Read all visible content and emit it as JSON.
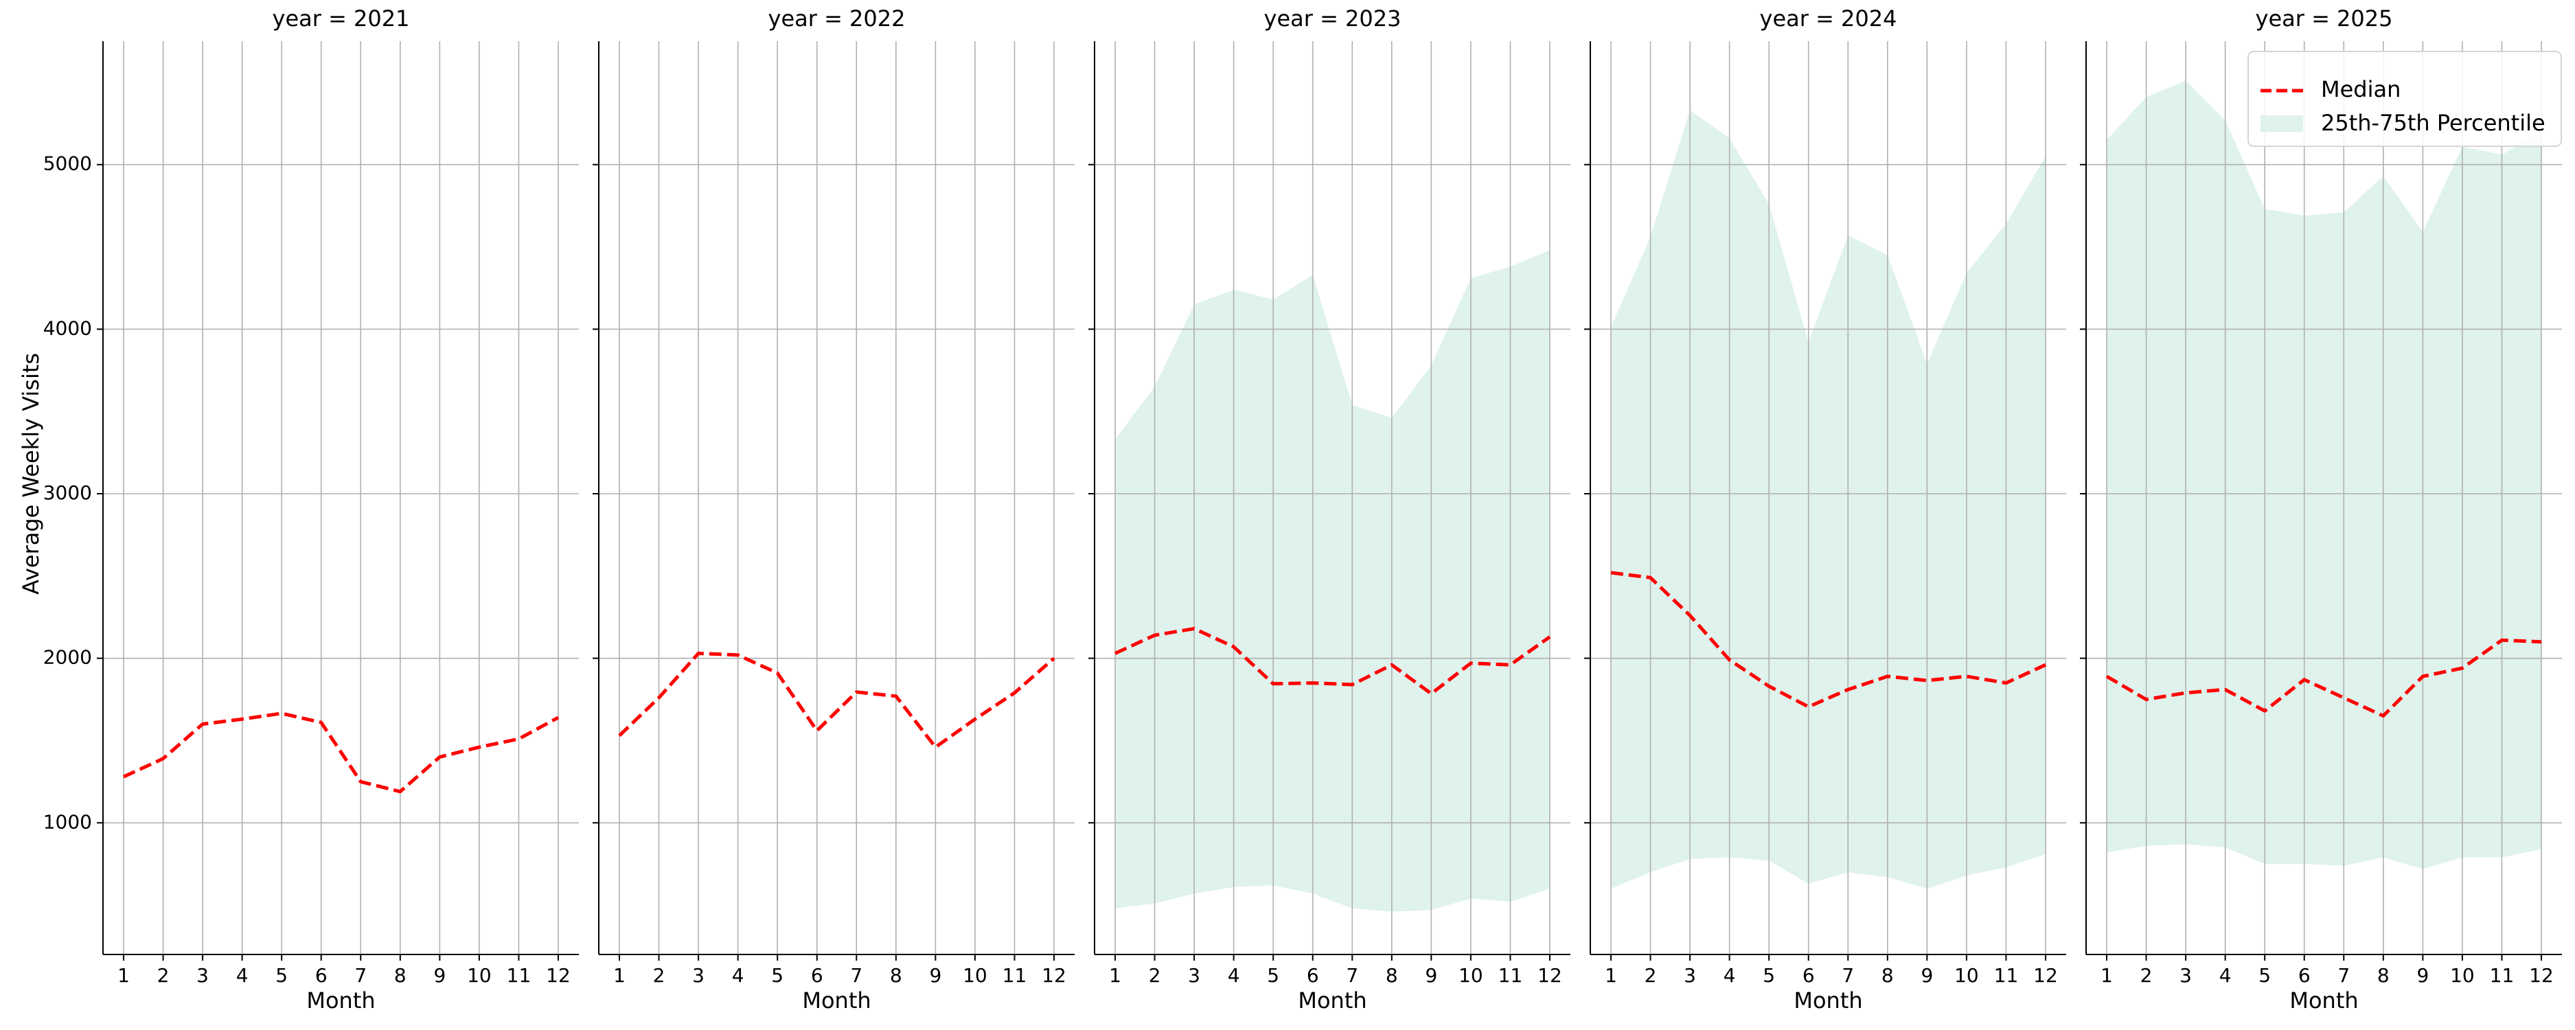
{
  "chart_data": {
    "type": "line",
    "facet_label_template": "year = {year}",
    "ylabel": "Average Weekly Visits",
    "xlabel": "Month",
    "x": [
      1,
      2,
      3,
      4,
      5,
      6,
      7,
      8,
      9,
      10,
      11,
      12
    ],
    "ylim": [
      200,
      5750
    ],
    "yticks": [
      1000,
      2000,
      3000,
      4000,
      5000
    ],
    "grid": true,
    "legend": {
      "placement": "top-right",
      "median_label": "Median",
      "band_label": "25th-75th Percentile"
    },
    "colors": {
      "median": "#ff0000",
      "band": "#dff2ec",
      "grid": "#b0b0b0",
      "axis": "#000000"
    },
    "panels": [
      {
        "year": "2021",
        "label": "year = 2021",
        "median": [
          1280,
          1390,
          1600,
          1630,
          1665,
          1610,
          1250,
          1190,
          1400,
          1460,
          1510,
          1640
        ],
        "p25": null,
        "p75": null
      },
      {
        "year": "2022",
        "label": "year = 2022",
        "median": [
          1530,
          1760,
          2030,
          2020,
          1910,
          1560,
          1795,
          1770,
          1460,
          1630,
          1790,
          2000
        ],
        "p25": null,
        "p75": null
      },
      {
        "year": "2023",
        "label": "year = 2023",
        "median": [
          2030,
          2140,
          2180,
          2070,
          1845,
          1850,
          1840,
          1960,
          1785,
          1970,
          1960,
          2130
        ],
        "p25": [
          480,
          510,
          570,
          610,
          620,
          570,
          480,
          460,
          470,
          540,
          520,
          600
        ],
        "p75": [
          3330,
          3650,
          4150,
          4240,
          4180,
          4330,
          3540,
          3460,
          3780,
          4310,
          4380,
          4480
        ]
      },
      {
        "year": "2024",
        "label": "year = 2024",
        "median": [
          2520,
          2490,
          2260,
          1990,
          1830,
          1705,
          1810,
          1890,
          1865,
          1890,
          1850,
          1960
        ],
        "p25": [
          600,
          700,
          780,
          790,
          770,
          630,
          700,
          670,
          600,
          680,
          730,
          810
        ],
        "p75": [
          4010,
          4560,
          5330,
          5160,
          4760,
          3920,
          4570,
          4450,
          3790,
          4340,
          4640,
          5050
        ]
      },
      {
        "year": "2025",
        "label": "year = 2025",
        "median": [
          1890,
          1750,
          1790,
          1810,
          1680,
          1870,
          1760,
          1650,
          1890,
          1940,
          2110,
          2100
        ],
        "p25": [
          820,
          860,
          870,
          850,
          750,
          750,
          740,
          790,
          720,
          790,
          790,
          840
        ],
        "p75": [
          5150,
          5410,
          5510,
          5270,
          4730,
          4690,
          4710,
          4930,
          4590,
          5110,
          5060,
          5200
        ]
      }
    ]
  }
}
